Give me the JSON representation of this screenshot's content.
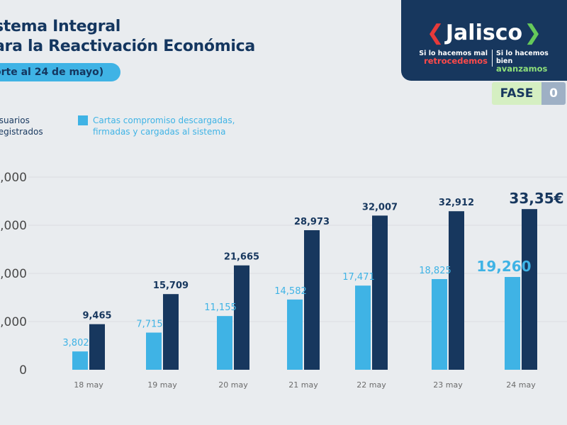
{
  "header": {
    "title_line1": "stema Integral",
    "title_line2": "ara la Reactivación Económica",
    "cutoff_label": "orte al 24 de mayo)"
  },
  "logo": {
    "word": "Jalisco",
    "slogan_left_line1": "Si lo hacemos mal",
    "slogan_left_line2": "retrocedemos",
    "slogan_right_line1": "Si lo hacemos bien",
    "slogan_right_line2": "avanzamos",
    "brand_color": "#17375e"
  },
  "phase": {
    "label": "FASE",
    "number": "0"
  },
  "legend": {
    "series1_line1": "Usuarios",
    "series1_line2": "Registrados",
    "series2_line1": "Cartas compromiso descargadas,",
    "series2_line2": "firmadas y cargadas al sistema"
  },
  "chart_data": {
    "type": "bar",
    "categories": [
      "18 may",
      "19 may",
      "20 may",
      "21 may",
      "22 may",
      "23 may",
      "24 may"
    ],
    "series": [
      {
        "name": "Usuarios Registrados",
        "color": "#17375e",
        "values": [
          9465,
          15709,
          21665,
          28973,
          32007,
          32912,
          33356
        ],
        "labels": [
          "9,465",
          "15,709",
          "21,665",
          "28,973",
          "32,007",
          "32,912",
          "33,35€"
        ]
      },
      {
        "name": "Cartas compromiso descargadas, firmadas y cargadas al sistema",
        "color": "#3fb3e5",
        "values": [
          3802,
          7715,
          11155,
          14582,
          17471,
          18825,
          19260
        ],
        "labels": [
          "3,802",
          "7,715",
          "11,155",
          "14,582",
          "17,471",
          "18,825",
          "19,260"
        ]
      }
    ],
    "yticks": [
      0,
      10000,
      20000,
      30000,
      40000
    ],
    "ytick_labels": [
      "0",
      ",000",
      ",000",
      ",000",
      ",000"
    ],
    "ylim": [
      0,
      40000
    ],
    "grid": true
  }
}
